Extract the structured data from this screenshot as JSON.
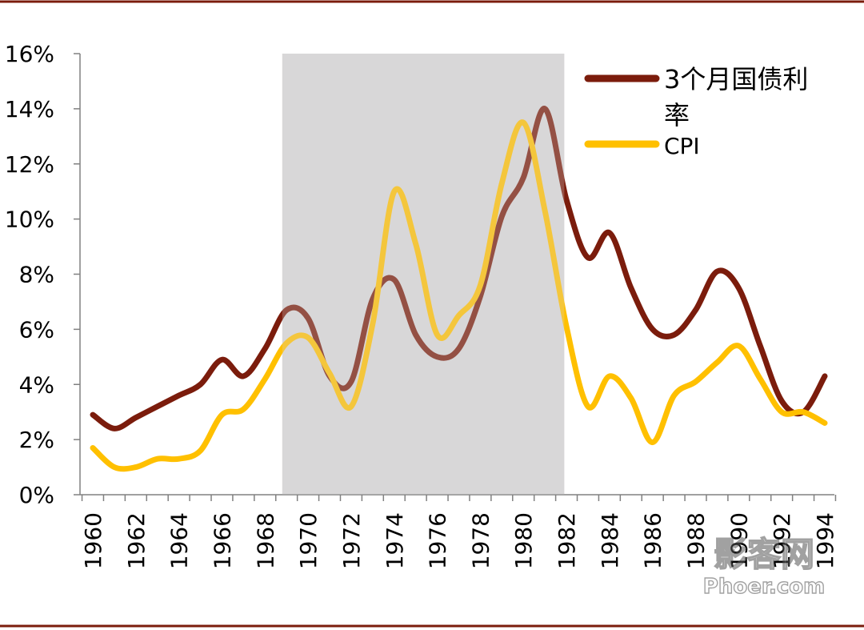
{
  "chart_data": {
    "type": "line",
    "title": "",
    "xlabel": "",
    "ylabel": "",
    "x": [
      1960,
      1961,
      1962,
      1963,
      1964,
      1965,
      1966,
      1967,
      1968,
      1969,
      1970,
      1971,
      1972,
      1973,
      1974,
      1975,
      1976,
      1977,
      1978,
      1979,
      1980,
      1981,
      1982,
      1983,
      1984,
      1985,
      1986,
      1987,
      1988,
      1989,
      1990,
      1991,
      1992,
      1993,
      1994
    ],
    "x_tick_labels": [
      "1960",
      "1962",
      "1964",
      "1966",
      "1968",
      "1970",
      "1972",
      "1974",
      "1976",
      "1978",
      "1980",
      "1982",
      "1984",
      "1986",
      "1988",
      "1990",
      "1992",
      "1994"
    ],
    "ylim": [
      0,
      16
    ],
    "y_tick_labels": [
      "0%",
      "2%",
      "4%",
      "6%",
      "8%",
      "10%",
      "12%",
      "14%",
      "16%"
    ],
    "series": [
      {
        "name": "3个月国债利率",
        "color": "#7b1c0c",
        "values": [
          2.9,
          2.4,
          2.8,
          3.2,
          3.6,
          4.0,
          4.9,
          4.3,
          5.3,
          6.7,
          6.4,
          4.3,
          4.1,
          7.1,
          7.8,
          5.8,
          5.0,
          5.3,
          7.2,
          10.1,
          11.5,
          14.0,
          10.7,
          8.6,
          9.5,
          7.5,
          6.0,
          5.8,
          6.7,
          8.1,
          7.5,
          5.4,
          3.4,
          3.0,
          4.3
        ]
      },
      {
        "name": "CPI",
        "color": "#ffc000",
        "values": [
          1.7,
          1.0,
          1.0,
          1.3,
          1.3,
          1.6,
          2.9,
          3.1,
          4.2,
          5.5,
          5.7,
          4.4,
          3.2,
          6.2,
          11.0,
          9.1,
          5.8,
          6.5,
          7.6,
          11.3,
          13.5,
          10.3,
          6.1,
          3.2,
          4.3,
          3.5,
          1.9,
          3.6,
          4.1,
          4.8,
          5.4,
          4.2,
          3.0,
          3.0,
          2.6
        ]
      }
    ],
    "shaded_region": {
      "x_start": 1968.8,
      "x_end": 1981.9,
      "color": "#d9d7d8"
    },
    "legend": "top-right",
    "grid": false
  },
  "watermark": {
    "line1": "影客网",
    "line2": "Phoer.com"
  }
}
